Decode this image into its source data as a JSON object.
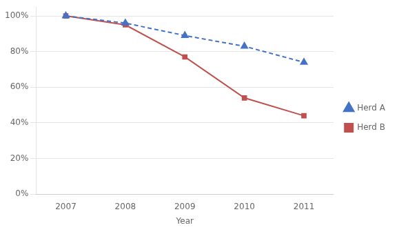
{
  "chart_data": {
    "type": "line",
    "categories": [
      "2007",
      "2008",
      "2009",
      "2010",
      "2011"
    ],
    "series": [
      {
        "name": "Herd A",
        "color": "#4472C4",
        "values": [
          1.0,
          0.96,
          0.89,
          0.83,
          0.74
        ],
        "marker": "triangle",
        "line_style": "dashed"
      },
      {
        "name": "Herd B",
        "color": "#C0504D",
        "values": [
          1.0,
          0.95,
          0.77,
          0.54,
          0.44
        ],
        "marker": "square",
        "line_style": "solid"
      }
    ],
    "xlabel": "Year",
    "ylim": [
      0,
      1.05
    ],
    "yticks": [
      {
        "value": 0.0,
        "label": "0%"
      },
      {
        "value": 0.2,
        "label": "20%"
      },
      {
        "value": 0.4,
        "label": "40%"
      },
      {
        "value": 0.6,
        "label": "60%"
      },
      {
        "value": 0.8,
        "label": "80%"
      },
      {
        "value": 1.0,
        "label": "100%"
      }
    ],
    "grid": true,
    "legend": "right"
  }
}
